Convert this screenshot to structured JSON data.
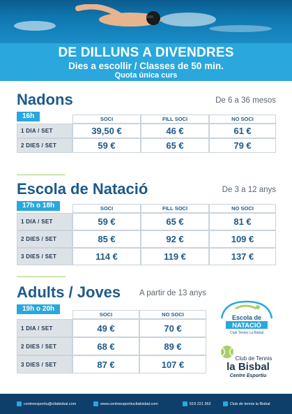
{
  "banner": {
    "title": "DE DILLUNS A DIVENDRES",
    "subtitle": "Dies a escollir / Classes de 50 min.",
    "quota": "Quota única curs"
  },
  "sections": [
    {
      "title": "Nadons",
      "age": "De 6 a 36 mesos",
      "badge": "16h",
      "columns": [
        "SOCI",
        "FILL SOCI",
        "NO SOCI"
      ],
      "rows": [
        {
          "label": "1 DIA / SET",
          "values": [
            "39,50 €",
            "46 €",
            "61 €"
          ]
        },
        {
          "label": "2 DIES / SET",
          "values": [
            "59 €",
            "65 €",
            "79 €"
          ]
        }
      ]
    },
    {
      "title": "Escola de Natació",
      "age": "De 3 a 12 anys",
      "badge": "17h o 18h",
      "columns": [
        "SOCI",
        "FILL SOCI",
        "NO SOCI"
      ],
      "rows": [
        {
          "label": "1 DIA / SET",
          "values": [
            "59 €",
            "65 €",
            "81 €"
          ]
        },
        {
          "label": "2 DIES / SET",
          "values": [
            "85 €",
            "92 €",
            "109 €"
          ]
        },
        {
          "label": "3 DIES / SET",
          "values": [
            "114 €",
            "119 €",
            "137 €"
          ]
        }
      ]
    },
    {
      "title": "Adults / Joves",
      "age": "A partir de 13 anys",
      "badge": "19h o 20h",
      "columns": [
        "SOCI",
        "NO SOCI"
      ],
      "rows": [
        {
          "label": "1 DIA / SET",
          "values": [
            "49 €",
            "70 €"
          ]
        },
        {
          "label": "2 DIES / SET",
          "values": [
            "68 €",
            "89 €"
          ]
        },
        {
          "label": "3 DIES / SET",
          "values": [
            "87 €",
            "107 €"
          ]
        }
      ]
    }
  ],
  "logos": {
    "escola_line1": "Escola de",
    "escola_line2": "NATACIÓ",
    "escola_line3": "Club Tennis La Bisbal",
    "club_line1": "Club de Tennis",
    "club_line2": "la Bisbal",
    "club_line3": "Centre Esportiu"
  },
  "footer": {
    "email": "centreesportiu@ctlabisbal.com",
    "web": "www.centreesportiuctlabisbal.com",
    "phone": "619 221 362",
    "facebook": "Club de tennis la Bisbal"
  },
  "colors": {
    "accent": "#2aa7dc",
    "navy": "#1d5a8a",
    "footer": "#0e3f6b",
    "rule": "#a8d06a",
    "row_label_bg": "#dde2e7"
  }
}
